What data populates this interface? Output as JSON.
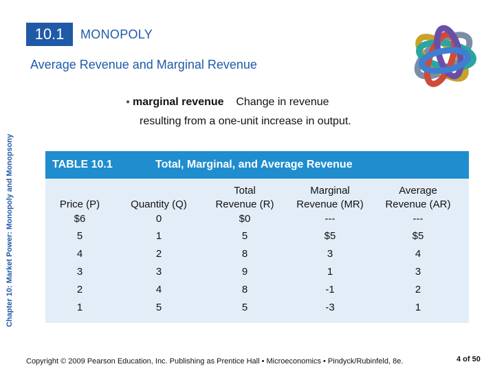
{
  "side_label": "Chapter 10: Market Power: Monopoly and Monopsony",
  "header": {
    "chapter_number": "10.1",
    "section": "MONOPOLY"
  },
  "subtitle": "Average Revenue and Marginal Revenue",
  "definition": {
    "term": "marginal revenue",
    "text_line1": "Change in revenue",
    "text_line2": "resulting from a one-unit increase in output."
  },
  "table": {
    "number": "TABLE 10.1",
    "title": "Total, Marginal, and Average Revenue",
    "columns": [
      {
        "line1": "",
        "line2": "Price (P)"
      },
      {
        "line1": "",
        "line2": "Quantity (Q)"
      },
      {
        "line1": "Total",
        "line2": "Revenue (R)"
      },
      {
        "line1": "Marginal",
        "line2": "Revenue (MR)"
      },
      {
        "line1": "Average",
        "line2": "Revenue (AR)"
      }
    ],
    "rows": [
      [
        "$6",
        "0",
        "$0",
        "---",
        "---"
      ],
      [
        "5",
        "1",
        "5",
        "$5",
        "$5"
      ],
      [
        "4",
        "2",
        "8",
        "3",
        "4"
      ],
      [
        "3",
        "3",
        "9",
        "1",
        "3"
      ],
      [
        "2",
        "4",
        "8",
        "-1",
        "2"
      ],
      [
        "1",
        "5",
        "5",
        "-3",
        "1"
      ]
    ]
  },
  "footer": "Copyright © 2009 Pearson Education, Inc. Publishing as Prentice Hall • Microeconomics • Pindyck/Rubinfeld, 8e.",
  "page_number": "4 of 50",
  "colors": {
    "accent_blue": "#1f5aa6",
    "table_header": "#1f8dce",
    "table_body": "#e3edf8"
  }
}
